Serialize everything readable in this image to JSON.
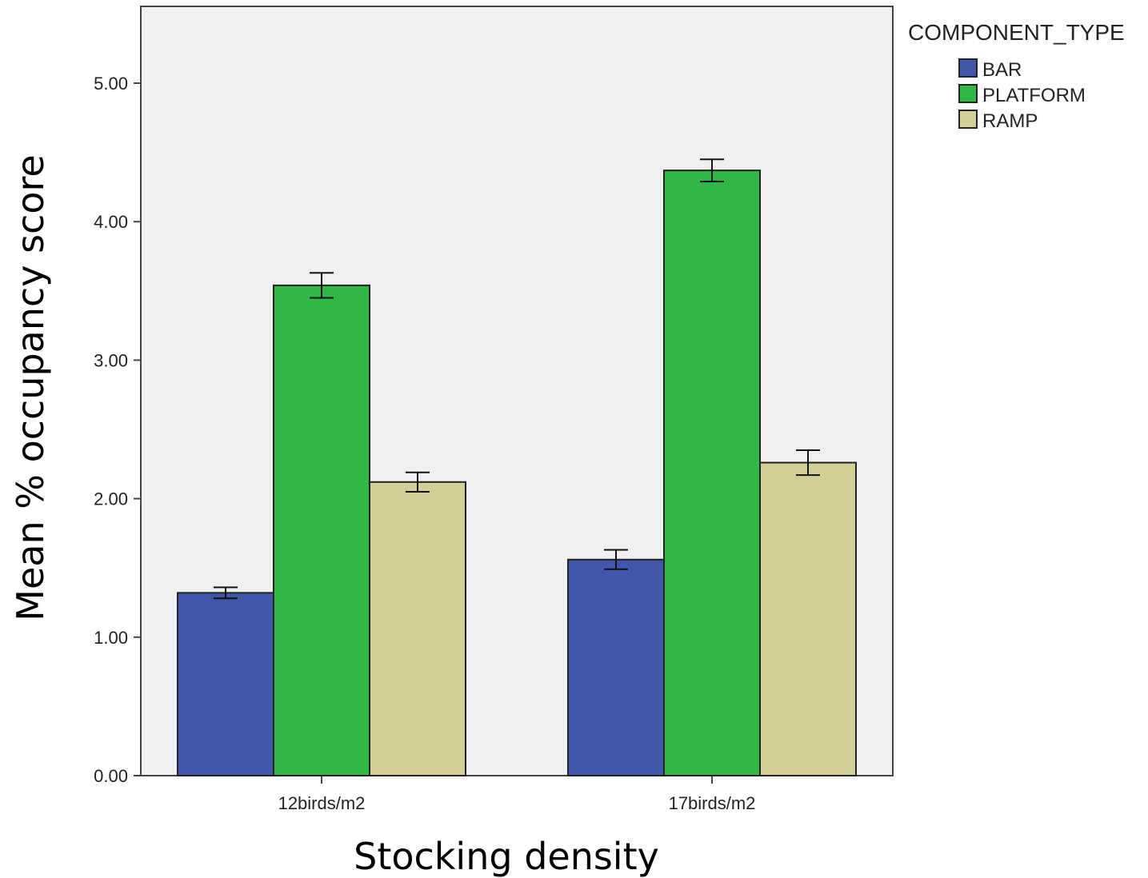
{
  "chart_data": {
    "type": "bar",
    "xlabel": "Stocking density",
    "ylabel": "Mean % occupancy score",
    "categories": [
      "12birds/m2",
      "17birds/m2"
    ],
    "ylim": [
      0,
      5.5
    ],
    "yticks": [
      "0.00",
      "1.00",
      "2.00",
      "3.00",
      "4.00",
      "5.00"
    ],
    "grid": false,
    "legend": {
      "title": "COMPONENT_TYPE",
      "position": "top-right"
    },
    "series": [
      {
        "name": "BAR",
        "color": "#3f56aa",
        "values": [
          1.32,
          1.56
        ],
        "errors": [
          0.04,
          0.07
        ]
      },
      {
        "name": "PLATFORM",
        "color": "#2fb847",
        "values": [
          3.54,
          4.37
        ],
        "errors": [
          0.09,
          0.08
        ]
      },
      {
        "name": "RAMP",
        "color": "#d4cf97",
        "values": [
          2.12,
          2.26
        ],
        "errors": [
          0.07,
          0.09
        ]
      }
    ]
  }
}
